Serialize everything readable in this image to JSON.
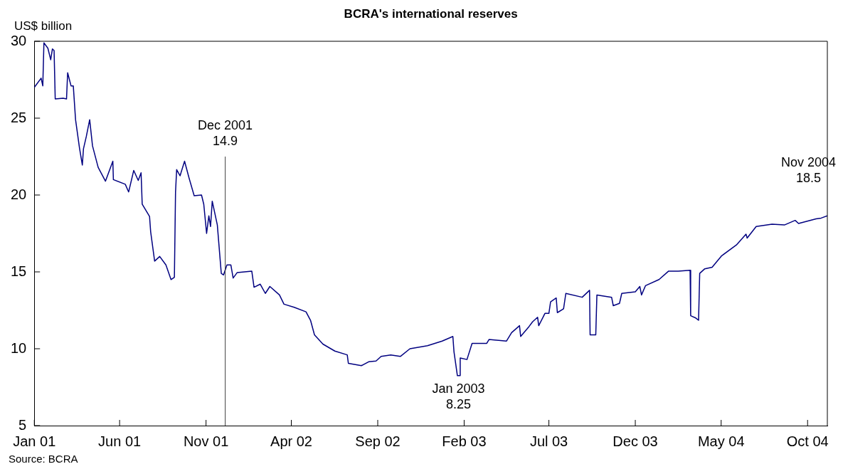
{
  "chart_data": {
    "type": "line",
    "title": "BCRA's international reserves",
    "ylabel": "US$ billion",
    "xlim": [
      "2001-01-01",
      "2004-11-05"
    ],
    "xticks": [
      {
        "value": "2001-01-01",
        "label": "Jan 01"
      },
      {
        "value": "2001-06-01",
        "label": "Jun 01"
      },
      {
        "value": "2001-11-01",
        "label": "Nov 01"
      },
      {
        "value": "2002-04-01",
        "label": "Apr 02"
      },
      {
        "value": "2002-09-01",
        "label": "Sep 02"
      },
      {
        "value": "2003-02-01",
        "label": "Feb 03"
      },
      {
        "value": "2003-07-01",
        "label": "Jul 03"
      },
      {
        "value": "2003-12-01",
        "label": "Dec 03"
      },
      {
        "value": "2004-05-01",
        "label": "May 04"
      },
      {
        "value": "2004-10-01",
        "label": "Oct 04"
      }
    ],
    "ylim": [
      5,
      30
    ],
    "yticks": [
      5,
      10,
      15,
      20,
      25,
      30
    ],
    "series": [
      {
        "color": "#000080",
        "x": [
          "2001-01-01",
          "2001-01-13",
          "2001-01-16",
          "2001-01-18",
          "2001-01-25",
          "2001-01-30",
          "2001-02-02",
          "2001-02-05",
          "2001-02-07",
          "2001-02-21",
          "2001-02-27",
          "2001-03-01",
          "2001-03-07",
          "2001-03-11",
          "2001-03-15",
          "2001-03-22",
          "2001-03-27",
          "2001-03-29",
          "2001-04-03",
          "2001-04-09",
          "2001-04-14",
          "2001-04-24",
          "2001-05-07",
          "2001-05-20",
          "2001-05-21",
          "2001-06-11",
          "2001-06-17",
          "2001-06-26",
          "2001-07-04",
          "2001-07-09",
          "2001-07-11",
          "2001-07-24",
          "2001-07-26",
          "2001-08-02",
          "2001-08-11",
          "2001-08-22",
          "2001-08-31",
          "2001-09-06",
          "2001-09-08",
          "2001-09-10",
          "2001-09-16",
          "2001-09-24",
          "2001-10-02",
          "2001-10-11",
          "2001-10-24",
          "2001-10-28",
          "2001-11-02",
          "2001-11-06",
          "2001-11-09",
          "2001-11-12",
          "2001-11-21",
          "2001-11-28",
          "2001-12-02",
          "2001-12-08",
          "2001-12-15",
          "2001-12-19",
          "2001-12-26",
          "2002-01-21",
          "2002-01-25",
          "2002-02-05",
          "2002-02-14",
          "2002-02-22",
          "2002-03-11",
          "2002-03-19",
          "2002-04-06",
          "2002-04-27",
          "2002-05-05",
          "2002-05-12",
          "2002-05-27",
          "2002-06-17",
          "2002-07-09",
          "2002-07-11",
          "2002-08-03",
          "2002-08-16",
          "2002-08-29",
          "2002-09-07",
          "2002-09-24",
          "2002-10-11",
          "2002-10-28",
          "2002-11-28",
          "2002-12-24",
          "2003-01-12",
          "2003-01-14",
          "2003-01-20",
          "2003-01-24",
          "2003-01-25",
          "2003-02-06",
          "2003-02-15",
          "2003-03-13",
          "2003-03-17",
          "2003-04-17",
          "2003-04-26",
          "2003-05-10",
          "2003-05-12",
          "2003-05-27",
          "2003-06-02",
          "2003-06-11",
          "2003-06-13",
          "2003-06-24",
          "2003-07-01",
          "2003-07-04",
          "2003-07-14",
          "2003-07-16",
          "2003-07-27",
          "2003-07-31",
          "2003-08-29",
          "2003-09-11",
          "2003-09-12",
          "2003-09-22",
          "2003-09-24",
          "2003-10-20",
          "2003-10-23",
          "2003-11-03",
          "2003-11-07",
          "2003-12-01",
          "2003-12-09",
          "2003-12-12",
          "2003-12-19",
          "2004-01-12",
          "2004-01-29",
          "2004-02-15",
          "2004-03-07",
          "2004-03-08",
          "2004-03-17",
          "2004-03-22",
          "2004-03-24",
          "2004-04-02",
          "2004-04-15",
          "2004-05-02",
          "2004-05-28",
          "2004-06-14",
          "2004-06-16",
          "2004-07-02",
          "2004-07-30",
          "2004-08-21",
          "2004-09-09",
          "2004-09-15",
          "2004-10-16",
          "2004-10-25",
          "2004-11-05"
        ],
        "values": [
          27.0,
          27.6,
          27.1,
          29.9,
          29.55,
          28.8,
          29.5,
          29.4,
          26.25,
          26.3,
          26.25,
          27.95,
          27.1,
          27.1,
          24.9,
          23.05,
          21.95,
          23.0,
          23.8,
          24.9,
          23.2,
          21.8,
          20.9,
          22.2,
          21.0,
          20.7,
          20.2,
          21.6,
          20.95,
          21.45,
          19.4,
          18.6,
          17.6,
          15.7,
          16.0,
          15.45,
          14.5,
          14.65,
          20.2,
          21.65,
          21.25,
          22.2,
          21.1,
          19.95,
          20.0,
          19.4,
          17.5,
          18.65,
          17.95,
          19.6,
          18.05,
          14.9,
          14.8,
          15.45,
          15.45,
          14.6,
          14.95,
          15.05,
          14.0,
          14.2,
          13.6,
          14.05,
          13.5,
          12.9,
          12.7,
          12.4,
          11.85,
          10.9,
          10.3,
          9.85,
          9.6,
          9.05,
          8.9,
          9.15,
          9.2,
          9.5,
          9.6,
          9.5,
          10.0,
          10.2,
          10.5,
          10.8,
          9.8,
          8.25,
          8.25,
          9.4,
          9.3,
          10.35,
          10.35,
          10.6,
          10.5,
          11.05,
          11.5,
          10.8,
          11.45,
          11.75,
          12.05,
          11.5,
          12.3,
          12.3,
          13.05,
          13.3,
          12.35,
          12.6,
          13.6,
          13.35,
          13.8,
          10.9,
          10.9,
          13.5,
          13.35,
          12.8,
          12.95,
          13.6,
          13.7,
          14.05,
          13.5,
          14.1,
          14.5,
          15.05,
          15.05,
          15.1,
          12.15,
          12.0,
          11.85,
          14.9,
          15.2,
          15.3,
          16.05,
          16.75,
          17.45,
          17.2,
          17.95,
          18.1,
          18.05,
          18.35,
          18.15,
          18.45,
          18.5,
          18.65
        ]
      }
    ],
    "ref_lines": [
      {
        "axis": "x",
        "value": "2001-12-05",
        "label": "Dec 2001\n14.9",
        "color": "#404040"
      }
    ],
    "annotations": [
      {
        "text": "Jan 2003\n8.25",
        "x": "2003-01-22",
        "y": 8.25
      },
      {
        "text": "Nov 2004\n18.5",
        "x": "2004-11-05",
        "y": 18.5
      },
      "Source: BCRA"
    ]
  }
}
